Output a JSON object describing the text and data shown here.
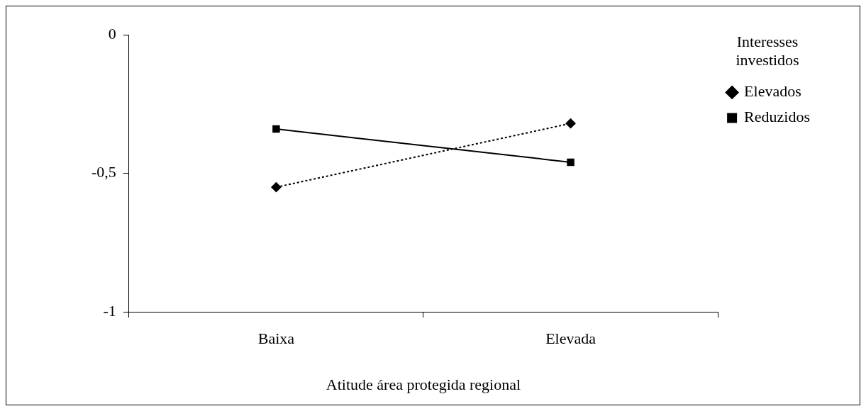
{
  "chart_data": {
    "type": "line",
    "xlabel": "Atitude área protegida regional",
    "legend_title": "Interesses investidos",
    "categories": [
      "Baixa",
      "Elevada"
    ],
    "series": [
      {
        "name": "Elevados",
        "color": "#000000",
        "values": [
          -0.55,
          -0.32
        ],
        "marker": "diamond",
        "line_style": "dotted"
      },
      {
        "name": "Reduzidos",
        "color": "#000000",
        "values": [
          -0.34,
          -0.46
        ],
        "marker": "square",
        "line_style": "solid"
      }
    ],
    "ylim": [
      -1,
      0
    ],
    "yticks": [
      0,
      {
        "value": -0.5,
        "label": "-0,5"
      },
      -1
    ],
    "grid": false,
    "legend": "top right"
  }
}
